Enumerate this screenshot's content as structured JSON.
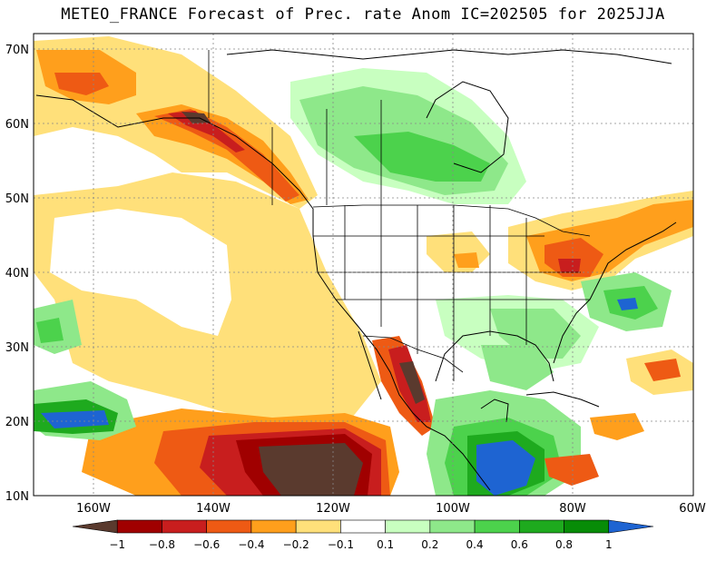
{
  "title": "METEO_FRANCE Forecast of Prec. rate Anom IC=202505 for 2025JJA",
  "lat_labels": [
    "70N",
    "60N",
    "50N",
    "40N",
    "30N",
    "20N",
    "10N"
  ],
  "lon_labels": [
    "160W",
    "140W",
    "120W",
    "100W",
    "80W",
    "60W"
  ],
  "colorbar": {
    "labels": [
      "−1",
      "−0.8",
      "−0.6",
      "−0.4",
      "−0.2",
      "−0.1",
      "0.1",
      "0.2",
      "0.4",
      "0.6",
      "0.8",
      "1"
    ],
    "colors": [
      "#5a3a2e",
      "#a00000",
      "#c81e1e",
      "#ee5a14",
      "#ff9f1c",
      "#ffe07a",
      "#ffffff",
      "#c8ffc0",
      "#8ee88a",
      "#4cd24c",
      "#1eaa1e",
      "#078c07",
      "#1e64d2"
    ]
  },
  "map": {
    "extent_lon": [
      -170,
      -60
    ],
    "extent_lat": [
      10,
      72
    ],
    "ocean_background": "#ffffff",
    "grid": true
  }
}
